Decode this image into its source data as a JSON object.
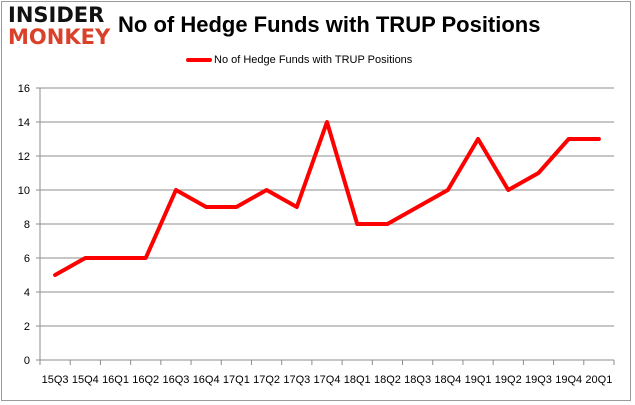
{
  "logo": {
    "line1": "INSIDER",
    "line2": "MONKEY"
  },
  "chart_data": {
    "type": "line",
    "title": "No of Hedge Funds with TRUP Positions",
    "xlabel": "",
    "ylabel": "",
    "categories": [
      "15Q3",
      "15Q4",
      "16Q1",
      "16Q2",
      "16Q3",
      "16Q4",
      "17Q1",
      "17Q2",
      "17Q3",
      "17Q4",
      "18Q1",
      "18Q2",
      "18Q3",
      "18Q4",
      "19Q1",
      "19Q2",
      "19Q3",
      "19Q4",
      "20Q1"
    ],
    "series": [
      {
        "name": "No of Hedge Funds with TRUP Positions",
        "color": "#ff0000",
        "values": [
          5,
          6,
          6,
          6,
          10,
          9,
          9,
          10,
          9,
          14,
          8,
          8,
          9,
          10,
          13,
          10,
          11,
          13,
          13
        ]
      }
    ],
    "ylim": [
      0,
      16
    ],
    "yticks": [
      0,
      2,
      4,
      6,
      8,
      10,
      12,
      14,
      16
    ],
    "grid": true,
    "legend": "top-center"
  }
}
